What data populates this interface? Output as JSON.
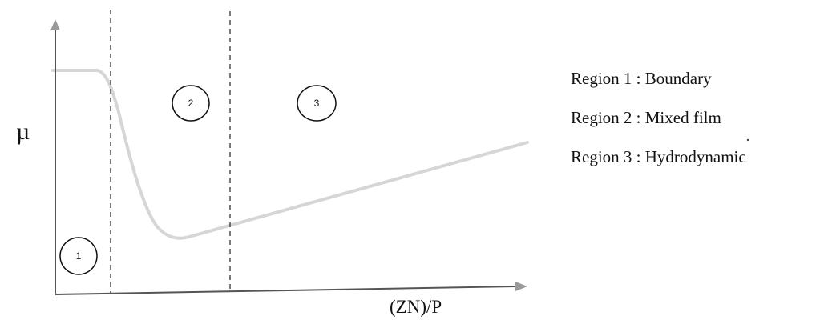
{
  "axes": {
    "y_label": "µ",
    "x_label": "(ZN)/P"
  },
  "regions": [
    {
      "number": "1",
      "name": "Boundary"
    },
    {
      "number": "2",
      "name": "Mixed film"
    },
    {
      "number": "3",
      "name": "Hydrodynamic"
    }
  ],
  "legend": [
    "Region 1 : Boundary",
    "Region 2 : Mixed film",
    "Region 3 : Hydrodynamic"
  ],
  "colors": {
    "curve": "#d6d6d6",
    "axis": "#555555",
    "arrowhead": "#999999",
    "divider": "#333333",
    "text": "#111111"
  }
}
